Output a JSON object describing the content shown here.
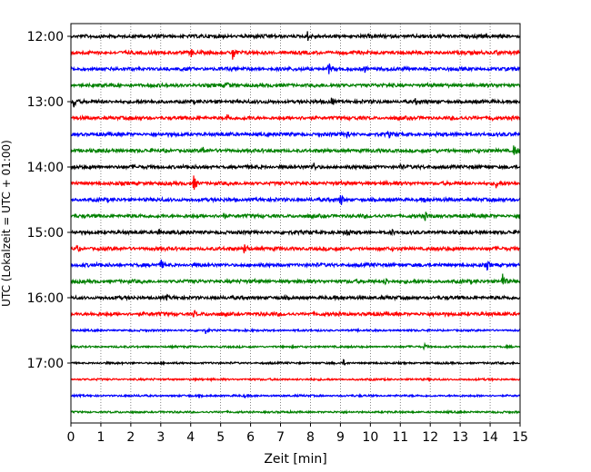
{
  "chart_data": {
    "type": "line",
    "title": "",
    "xlabel": "Zeit  [min]",
    "ylabel": "UTC (Lokalzeit = UTC + 01:00)",
    "xlim": [
      0,
      15
    ],
    "x_ticks": [
      "0",
      "1",
      "2",
      "3",
      "4",
      "5",
      "6",
      "7",
      "8",
      "9",
      "10",
      "11",
      "12",
      "13",
      "14",
      "15"
    ],
    "y_ticks": [
      "12:00",
      "13:00",
      "14:00",
      "15:00",
      "16:00",
      "17:00"
    ],
    "grid": "vertical dotted",
    "trace_interval_min": 15,
    "color_cycle": [
      "#000000",
      "#ff0000",
      "#0000ff",
      "#008000"
    ],
    "traces": [
      {
        "start": "12:00",
        "color": "#000000",
        "events": [
          [
            7.9,
            6
          ]
        ]
      },
      {
        "start": "12:15",
        "color": "#ff0000",
        "events": [
          [
            4.0,
            6
          ],
          [
            5.4,
            10
          ],
          [
            14.2,
            6
          ]
        ]
      },
      {
        "start": "12:30",
        "color": "#0000ff",
        "events": [
          [
            8.6,
            8
          ],
          [
            9.8,
            5
          ]
        ]
      },
      {
        "start": "12:45",
        "color": "#008000",
        "events": [
          [
            5.2,
            6
          ]
        ]
      },
      {
        "start": "13:00",
        "color": "#000000",
        "events": [
          [
            0.1,
            8
          ],
          [
            8.7,
            6
          ],
          [
            11.5,
            5
          ]
        ]
      },
      {
        "start": "13:15",
        "color": "#ff0000",
        "events": [
          [
            5.2,
            6
          ],
          [
            14.0,
            6
          ]
        ]
      },
      {
        "start": "13:30",
        "color": "#0000ff",
        "events": [
          [
            9.2,
            7
          ],
          [
            10.6,
            5
          ]
        ]
      },
      {
        "start": "13:45",
        "color": "#008000",
        "events": [
          [
            4.4,
            6
          ],
          [
            14.8,
            9
          ]
        ]
      },
      {
        "start": "14:00",
        "color": "#000000",
        "events": [
          [
            8.1,
            6
          ],
          [
            11.0,
            5
          ]
        ]
      },
      {
        "start": "14:15",
        "color": "#ff0000",
        "events": [
          [
            4.1,
            9
          ],
          [
            14.2,
            6
          ]
        ]
      },
      {
        "start": "14:30",
        "color": "#0000ff",
        "events": [
          [
            9.0,
            8
          ],
          [
            11.8,
            5
          ]
        ]
      },
      {
        "start": "14:45",
        "color": "#008000",
        "events": [
          [
            5.1,
            5
          ],
          [
            11.8,
            7
          ]
        ]
      },
      {
        "start": "15:00",
        "color": "#000000",
        "events": [
          [
            2.9,
            5
          ],
          [
            9.2,
            8
          ],
          [
            10.7,
            5
          ]
        ]
      },
      {
        "start": "15:15",
        "color": "#ff0000",
        "events": [
          [
            5.8,
            8
          ],
          [
            0.2,
            5
          ]
        ]
      },
      {
        "start": "15:30",
        "color": "#0000ff",
        "events": [
          [
            3.0,
            7
          ],
          [
            13.9,
            6
          ]
        ]
      },
      {
        "start": "15:45",
        "color": "#008000",
        "events": [
          [
            10.5,
            5
          ],
          [
            14.4,
            10
          ]
        ]
      },
      {
        "start": "16:00",
        "color": "#000000",
        "events": [
          [
            3.2,
            4
          ]
        ]
      },
      {
        "start": "16:15",
        "color": "#ff0000",
        "events": [
          [
            4.1,
            5
          ]
        ]
      },
      {
        "start": "16:30",
        "color": "#0000ff",
        "events": [
          [
            4.5,
            4
          ]
        ]
      },
      {
        "start": "16:45",
        "color": "#008000",
        "events": [
          [
            11.8,
            4
          ]
        ]
      },
      {
        "start": "17:00",
        "color": "#000000",
        "events": [
          [
            9.1,
            4
          ]
        ]
      },
      {
        "start": "17:15",
        "color": "#ff0000",
        "events": []
      },
      {
        "start": "17:30",
        "color": "#0000ff",
        "events": [
          [
            5.8,
            3
          ]
        ]
      },
      {
        "start": "17:45",
        "color": "#008000",
        "events": []
      }
    ]
  }
}
